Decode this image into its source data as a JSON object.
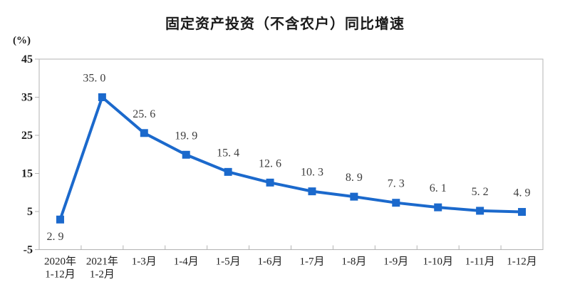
{
  "chart_data": {
    "type": "line",
    "title": "固定资产投资（不含农户）同比增速",
    "unit_label": "(%)",
    "categories": [
      [
        "2020年",
        "1-12月"
      ],
      [
        "2021年",
        "1-2月"
      ],
      [
        "1-3月"
      ],
      [
        "1-4月"
      ],
      [
        "1-5月"
      ],
      [
        "1-6月"
      ],
      [
        "1-7月"
      ],
      [
        "1-8月"
      ],
      [
        "1-9月"
      ],
      [
        "1-10月"
      ],
      [
        "1-11月"
      ],
      [
        "1-12月"
      ]
    ],
    "values": [
      2.9,
      35.0,
      25.6,
      19.9,
      15.4,
      12.6,
      10.3,
      8.9,
      7.3,
      6.1,
      5.2,
      4.9
    ],
    "point_labels": [
      "2. 9",
      "35. 0",
      "25. 6",
      "19. 9",
      "15. 4",
      "12. 6",
      "10. 3",
      "8. 9",
      "7. 3",
      "6. 1",
      "5. 2",
      "4. 9"
    ],
    "ylim": [
      -5,
      45
    ],
    "yticks": [
      45,
      35,
      25,
      15,
      5,
      -5
    ],
    "grid": "off",
    "legend": "none",
    "series_name": "固定资产投资（不含农户）同比增速",
    "series_color": "#1b69cc",
    "axis_color": "#b3b3b3",
    "point_label_color": "#3d3d3d",
    "tick_label_color": "#1f1f1f"
  }
}
